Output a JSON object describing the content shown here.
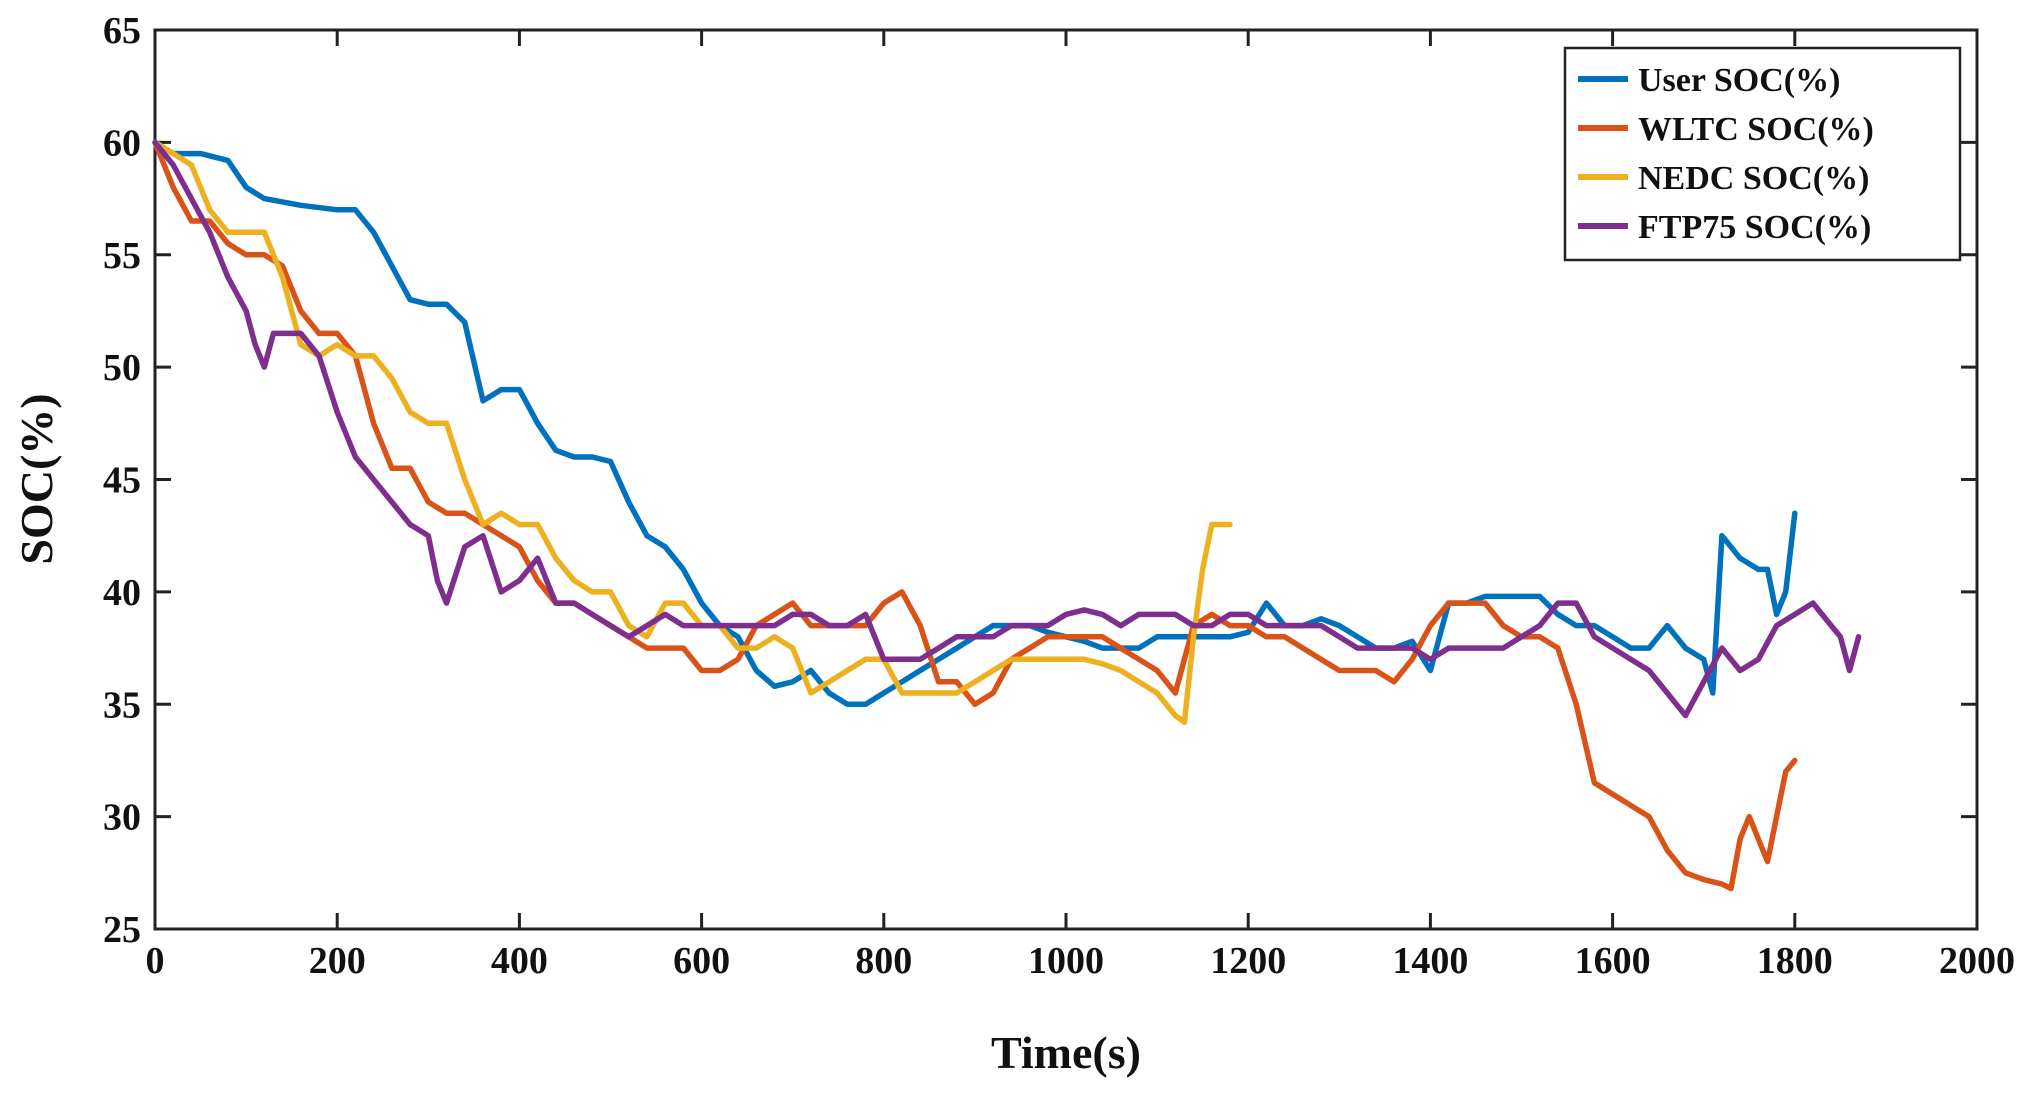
{
  "chart_data": {
    "type": "line",
    "title": "",
    "xlabel": "Time(s)",
    "ylabel": "SOC(%)",
    "xlim": [
      0,
      2000
    ],
    "ylim": [
      25,
      65
    ],
    "xticks": [
      0,
      200,
      400,
      600,
      800,
      1000,
      1200,
      1400,
      1600,
      1800,
      2000
    ],
    "yticks": [
      25,
      30,
      35,
      40,
      45,
      50,
      55,
      60,
      65
    ],
    "grid": false,
    "legend_position": "top-right",
    "series": [
      {
        "name": "User SOC(%)",
        "color": "#0072BD",
        "x": [
          0,
          20,
          50,
          80,
          100,
          120,
          160,
          200,
          220,
          240,
          260,
          280,
          300,
          320,
          340,
          360,
          380,
          400,
          420,
          440,
          460,
          480,
          500,
          520,
          540,
          560,
          580,
          600,
          620,
          640,
          660,
          680,
          700,
          720,
          740,
          760,
          780,
          800,
          820,
          840,
          860,
          880,
          900,
          920,
          940,
          960,
          980,
          1000,
          1020,
          1040,
          1060,
          1080,
          1100,
          1120,
          1140,
          1160,
          1180,
          1200,
          1220,
          1240,
          1260,
          1280,
          1300,
          1320,
          1340,
          1360,
          1380,
          1400,
          1420,
          1440,
          1460,
          1480,
          1500,
          1520,
          1540,
          1560,
          1580,
          1600,
          1620,
          1640,
          1660,
          1680,
          1700,
          1710,
          1720,
          1740,
          1760,
          1770,
          1780,
          1790,
          1800
        ],
        "y": [
          60,
          59.5,
          59.5,
          59.2,
          58,
          57.5,
          57.2,
          57,
          57,
          56,
          54.5,
          53,
          52.8,
          52.8,
          52,
          48.5,
          49,
          49,
          47.5,
          46.3,
          46,
          46,
          45.8,
          44,
          42.5,
          42,
          41,
          39.5,
          38.5,
          38,
          36.5,
          35.8,
          36,
          36.5,
          35.5,
          35,
          35,
          35.5,
          36,
          36.5,
          37,
          37.5,
          38,
          38.5,
          38.5,
          38.5,
          38.2,
          38,
          37.8,
          37.5,
          37.5,
          37.5,
          38,
          38,
          38,
          38,
          38,
          38.2,
          39.5,
          38.5,
          38.5,
          38.8,
          38.5,
          38,
          37.5,
          37.5,
          37.8,
          36.5,
          39.5,
          39.5,
          39.8,
          39.8,
          39.8,
          39.8,
          39,
          38.5,
          38.5,
          38,
          37.5,
          37.5,
          38.5,
          37.5,
          37,
          35.5,
          42.5,
          41.5,
          41,
          41,
          39,
          40,
          43.5
        ]
      },
      {
        "name": "WLTC SOC(%)",
        "color": "#D95319",
        "x": [
          0,
          20,
          40,
          60,
          80,
          100,
          120,
          140,
          160,
          180,
          200,
          220,
          240,
          260,
          280,
          300,
          320,
          340,
          360,
          380,
          400,
          420,
          440,
          460,
          480,
          500,
          520,
          540,
          560,
          580,
          600,
          620,
          640,
          660,
          680,
          700,
          720,
          740,
          760,
          780,
          800,
          820,
          840,
          860,
          880,
          900,
          920,
          940,
          960,
          980,
          1000,
          1020,
          1040,
          1060,
          1080,
          1100,
          1120,
          1140,
          1160,
          1180,
          1200,
          1220,
          1240,
          1260,
          1280,
          1300,
          1320,
          1340,
          1360,
          1380,
          1400,
          1420,
          1440,
          1460,
          1480,
          1500,
          1520,
          1540,
          1560,
          1580,
          1600,
          1620,
          1640,
          1660,
          1680,
          1700,
          1720,
          1730,
          1740,
          1750,
          1760,
          1770,
          1780,
          1790,
          1800
        ],
        "y": [
          60,
          58,
          56.5,
          56.5,
          55.5,
          55,
          55,
          54.5,
          52.5,
          51.5,
          51.5,
          50.5,
          47.5,
          45.5,
          45.5,
          44,
          43.5,
          43.5,
          43,
          42.5,
          42,
          40.5,
          39.5,
          39.5,
          39,
          38.5,
          38,
          37.5,
          37.5,
          37.5,
          36.5,
          36.5,
          37,
          38.5,
          39,
          39.5,
          38.5,
          38.5,
          38.5,
          38.5,
          39.5,
          40,
          38.5,
          36,
          36,
          35,
          35.5,
          37,
          37.5,
          38,
          38,
          38,
          38,
          37.5,
          37,
          36.5,
          35.5,
          38.5,
          39,
          38.5,
          38.5,
          38,
          38,
          37.5,
          37,
          36.5,
          36.5,
          36.5,
          36,
          37,
          38.5,
          39.5,
          39.5,
          39.5,
          38.5,
          38,
          38,
          37.5,
          35,
          31.5,
          31,
          30.5,
          30,
          28.5,
          27.5,
          27.2,
          27,
          26.8,
          29,
          30,
          29,
          28,
          30,
          32,
          32.5
        ]
      },
      {
        "name": "NEDC SOC(%)",
        "color": "#EDB120",
        "x": [
          0,
          20,
          40,
          60,
          80,
          100,
          120,
          140,
          160,
          180,
          200,
          220,
          240,
          260,
          280,
          300,
          320,
          340,
          360,
          380,
          400,
          420,
          440,
          460,
          480,
          500,
          520,
          540,
          560,
          580,
          600,
          620,
          640,
          660,
          680,
          700,
          720,
          740,
          760,
          780,
          800,
          820,
          840,
          860,
          880,
          900,
          920,
          940,
          960,
          980,
          1000,
          1020,
          1040,
          1060,
          1080,
          1100,
          1110,
          1120,
          1130,
          1140,
          1150,
          1160,
          1170,
          1180
        ],
        "y": [
          60,
          59.5,
          59,
          57,
          56,
          56,
          56,
          54,
          51,
          50.5,
          51,
          50.5,
          50.5,
          49.5,
          48,
          47.5,
          47.5,
          45,
          43,
          43.5,
          43,
          43,
          41.5,
          40.5,
          40,
          40,
          38.5,
          38,
          39.5,
          39.5,
          38.5,
          38.5,
          37.5,
          37.5,
          38,
          37.5,
          35.5,
          36,
          36.5,
          37,
          37,
          35.5,
          35.5,
          35.5,
          35.5,
          36,
          36.5,
          37,
          37,
          37,
          37,
          37,
          36.8,
          36.5,
          36,
          35.5,
          35,
          34.5,
          34.2,
          38,
          41,
          43,
          43,
          43
        ]
      },
      {
        "name": "FTP75 SOC(%)",
        "color": "#7E2F8E",
        "x": [
          0,
          20,
          40,
          60,
          80,
          100,
          110,
          120,
          130,
          140,
          160,
          180,
          200,
          220,
          240,
          260,
          280,
          300,
          310,
          320,
          340,
          360,
          380,
          400,
          420,
          440,
          460,
          480,
          500,
          520,
          540,
          560,
          580,
          600,
          620,
          640,
          660,
          680,
          700,
          720,
          740,
          760,
          780,
          800,
          820,
          840,
          860,
          880,
          900,
          920,
          940,
          960,
          980,
          1000,
          1020,
          1040,
          1060,
          1080,
          1100,
          1120,
          1140,
          1160,
          1180,
          1200,
          1220,
          1240,
          1260,
          1280,
          1300,
          1320,
          1340,
          1360,
          1380,
          1400,
          1420,
          1440,
          1460,
          1480,
          1500,
          1520,
          1540,
          1560,
          1580,
          1600,
          1620,
          1640,
          1660,
          1670,
          1680,
          1700,
          1720,
          1740,
          1760,
          1780,
          1800,
          1820,
          1840,
          1850,
          1860,
          1870
        ],
        "y": [
          60,
          59,
          57.5,
          56,
          54,
          52.5,
          51,
          50,
          51.5,
          51.5,
          51.5,
          50.5,
          48,
          46,
          45,
          44,
          43,
          42.5,
          40.5,
          39.5,
          42,
          42.5,
          40,
          40.5,
          41.5,
          39.5,
          39.5,
          39,
          38.5,
          38,
          38.5,
          39,
          38.5,
          38.5,
          38.5,
          38.5,
          38.5,
          38.5,
          39,
          39,
          38.5,
          38.5,
          39,
          37,
          37,
          37,
          37.5,
          38,
          38,
          38,
          38.5,
          38.5,
          38.5,
          39,
          39.2,
          39,
          38.5,
          39,
          39,
          39,
          38.5,
          38.5,
          39,
          39,
          38.5,
          38.5,
          38.5,
          38.5,
          38,
          37.5,
          37.5,
          37.5,
          37.5,
          37,
          37.5,
          37.5,
          37.5,
          37.5,
          38,
          38.5,
          39.5,
          39.5,
          38,
          37.5,
          37,
          36.5,
          35.5,
          35,
          34.5,
          36,
          37.5,
          36.5,
          37,
          38.5,
          39,
          39.5,
          38.5,
          38,
          36.5,
          38
        ]
      }
    ]
  }
}
